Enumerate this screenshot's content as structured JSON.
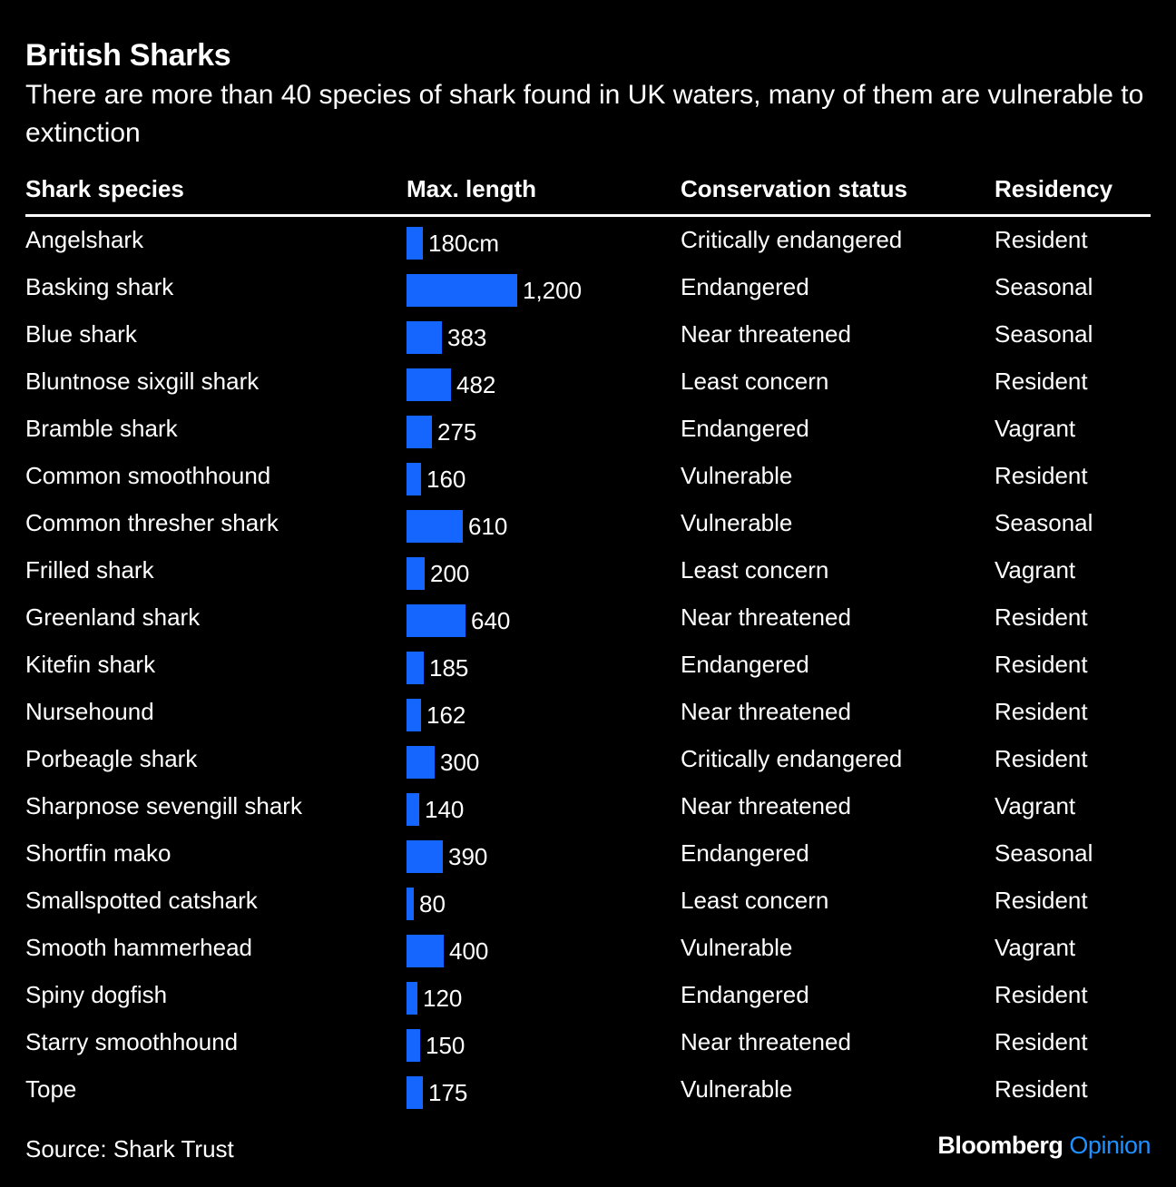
{
  "title": "British Sharks",
  "subtitle": "There are more than 40 species of shark found in UK waters, many of them are vulnerable to extinction",
  "headers": {
    "species": "Shark species",
    "length": "Max. length",
    "status": "Conservation status",
    "residency": "Residency"
  },
  "source": "Source: Shark Trust",
  "brand": {
    "name": "Bloomberg",
    "section": "Opinion"
  },
  "colors": {
    "bar": "#1565ff",
    "background": "#000000",
    "text": "#ffffff",
    "brand_accent": "#1e90ff"
  },
  "chart_data": {
    "type": "table",
    "title": "British Sharks",
    "subtitle": "There are more than 40 species of shark found in UK waters, many of them are vulnerable to extinction",
    "columns": [
      "Shark species",
      "Max. length",
      "Conservation status",
      "Residency"
    ],
    "length_unit": "cm",
    "length_max": 1200,
    "rows": [
      {
        "species": "Angelshark",
        "length": 180,
        "length_label": "180cm",
        "status": "Critically endangered",
        "residency": "Resident"
      },
      {
        "species": "Basking shark",
        "length": 1200,
        "length_label": "1,200",
        "status": "Endangered",
        "residency": "Seasonal"
      },
      {
        "species": "Blue shark",
        "length": 383,
        "length_label": "383",
        "status": "Near threatened",
        "residency": "Seasonal"
      },
      {
        "species": "Bluntnose sixgill shark",
        "length": 482,
        "length_label": "482",
        "status": "Least concern",
        "residency": "Resident"
      },
      {
        "species": "Bramble shark",
        "length": 275,
        "length_label": "275",
        "status": "Endangered",
        "residency": "Vagrant"
      },
      {
        "species": "Common smoothhound",
        "length": 160,
        "length_label": "160",
        "status": "Vulnerable",
        "residency": "Resident"
      },
      {
        "species": "Common thresher shark",
        "length": 610,
        "length_label": "610",
        "status": "Vulnerable",
        "residency": "Seasonal"
      },
      {
        "species": "Frilled shark",
        "length": 200,
        "length_label": "200",
        "status": "Least concern",
        "residency": "Vagrant"
      },
      {
        "species": "Greenland shark",
        "length": 640,
        "length_label": "640",
        "status": "Near threatened",
        "residency": "Resident"
      },
      {
        "species": "Kitefin shark",
        "length": 185,
        "length_label": "185",
        "status": "Endangered",
        "residency": "Resident"
      },
      {
        "species": "Nursehound",
        "length": 162,
        "length_label": "162",
        "status": "Near threatened",
        "residency": "Resident"
      },
      {
        "species": "Porbeagle shark",
        "length": 300,
        "length_label": "300",
        "status": "Critically endangered",
        "residency": "Resident"
      },
      {
        "species": "Sharpnose sevengill shark",
        "length": 140,
        "length_label": "140",
        "status": "Near threatened",
        "residency": "Vagrant"
      },
      {
        "species": "Shortfin mako",
        "length": 390,
        "length_label": "390",
        "status": "Endangered",
        "residency": "Seasonal"
      },
      {
        "species": "Smallspotted catshark",
        "length": 80,
        "length_label": "80",
        "status": "Least concern",
        "residency": "Resident"
      },
      {
        "species": "Smooth hammerhead",
        "length": 400,
        "length_label": "400",
        "status": "Vulnerable",
        "residency": "Vagrant"
      },
      {
        "species": "Spiny dogfish",
        "length": 120,
        "length_label": "120",
        "status": "Endangered",
        "residency": "Resident"
      },
      {
        "species": "Starry smoothhound",
        "length": 150,
        "length_label": "150",
        "status": "Near threatened",
        "residency": "Resident"
      },
      {
        "species": "Tope",
        "length": 175,
        "length_label": "175",
        "status": "Vulnerable",
        "residency": "Resident"
      }
    ]
  }
}
